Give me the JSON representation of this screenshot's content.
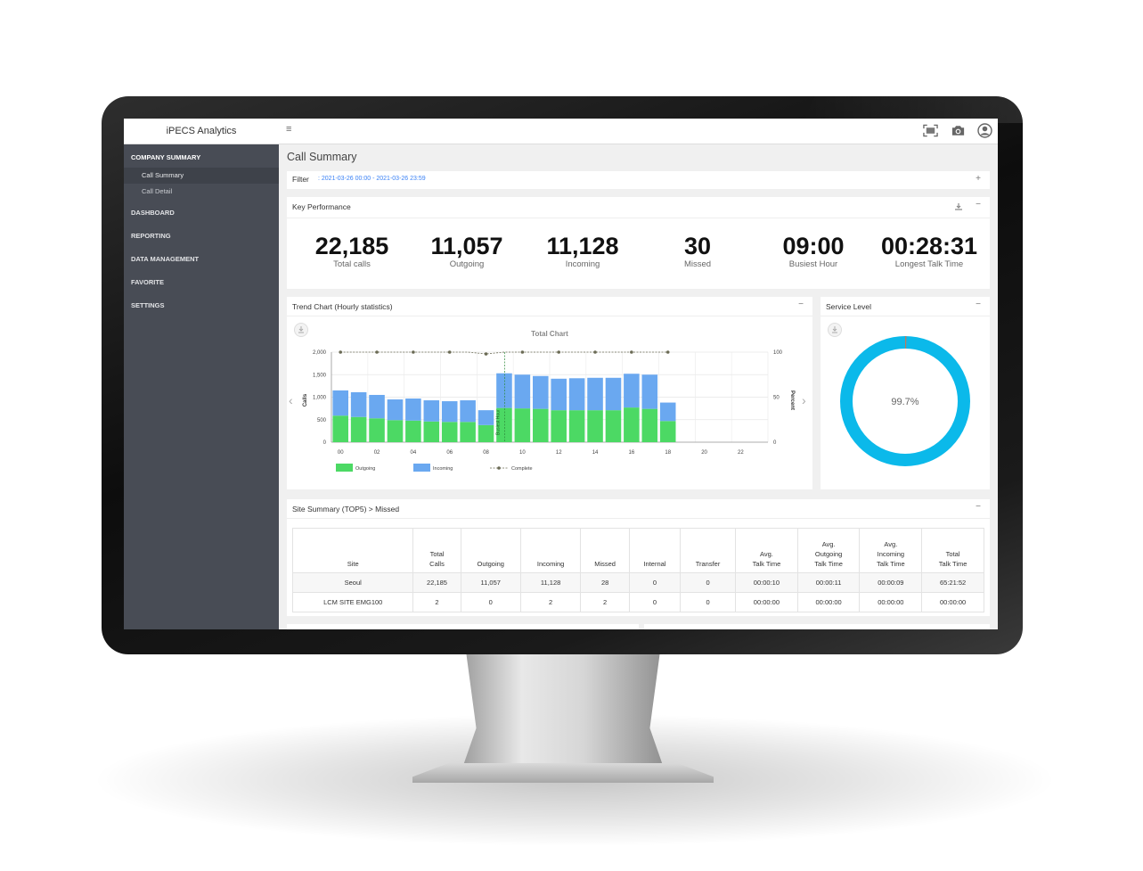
{
  "app": {
    "title": "iPECS Analytics"
  },
  "header_icons": [
    "fullscreen-icon",
    "camera-icon",
    "user-avatar-icon"
  ],
  "sidebar": {
    "sections": [
      {
        "label": "COMPANY SUMMARY",
        "active": true,
        "items": [
          {
            "label": "Call Summary",
            "active": true
          },
          {
            "label": "Call Detail",
            "active": false
          }
        ]
      },
      {
        "label": "DASHBOARD"
      },
      {
        "label": "REPORTING"
      },
      {
        "label": "DATA MANAGEMENT"
      },
      {
        "label": "FAVORITE"
      },
      {
        "label": "SETTINGS"
      }
    ]
  },
  "page": {
    "title": "Call Summary"
  },
  "filter": {
    "label": "Filter",
    "value": ": 2021-03-26 00:00 - 2021-03-26 23:59",
    "expand_symbol": "+"
  },
  "key_performance": {
    "title": "Key Performance",
    "collapse_symbol": "−",
    "kpis": [
      {
        "value": "22,185",
        "label": "Total calls"
      },
      {
        "value": "11,057",
        "label": "Outgoing"
      },
      {
        "value": "11,128",
        "label": "Incoming"
      },
      {
        "value": "30",
        "label": "Missed"
      },
      {
        "value": "09:00",
        "label": "Busiest Hour"
      },
      {
        "value": "00:28:31",
        "label": "Longest Talk Time"
      }
    ]
  },
  "trend_chart": {
    "card_title": "Trend Chart (Hourly statistics)",
    "collapse_symbol": "−",
    "nav_prev": "‹",
    "nav_next": "›",
    "busiest_marker_label": "Busiest Hour"
  },
  "chart_data": {
    "type": "bar",
    "title": "Total Chart",
    "x": [
      0,
      1,
      2,
      3,
      4,
      5,
      6,
      7,
      8,
      9,
      10,
      11,
      12,
      13,
      14,
      15,
      16,
      17,
      18
    ],
    "x_ticks": [
      "00",
      "02",
      "04",
      "06",
      "08",
      "10",
      "12",
      "14",
      "16",
      "18",
      "20",
      "22"
    ],
    "ylabel": "Calls",
    "y2label": "Percent",
    "ylim": [
      0,
      2000
    ],
    "y_ticks": [
      "0",
      "500",
      "1,000",
      "1,500",
      "2,000"
    ],
    "y2lim": [
      0,
      100
    ],
    "y2_ticks": [
      "0",
      "50",
      "100"
    ],
    "stacked": true,
    "series": [
      {
        "name": "Outgoing",
        "color": "#4cd964",
        "values": [
          590,
          560,
          530,
          490,
          480,
          460,
          450,
          450,
          380,
          760,
          750,
          740,
          710,
          710,
          710,
          710,
          770,
          740,
          470
        ]
      },
      {
        "name": "Incoming",
        "color": "#6aa8f0",
        "values": [
          560,
          550,
          520,
          460,
          490,
          470,
          460,
          480,
          330,
          770,
          750,
          730,
          700,
          710,
          720,
          720,
          750,
          760,
          410
        ]
      },
      {
        "name": "Complete",
        "color": "#6b6b55",
        "type": "line",
        "axis": "right",
        "values": [
          100,
          100,
          100,
          100,
          100,
          100,
          100,
          100,
          98,
          100,
          100,
          100,
          100,
          100,
          100,
          100,
          100,
          100,
          100
        ]
      }
    ],
    "busiest_hour_index": 9,
    "grid": true,
    "legend_position": "bottom"
  },
  "service_level": {
    "title": "Service Level",
    "collapse_symbol": "−",
    "value_text": "99.7%",
    "percent": 99.7,
    "ring_color": "#0bb9ea",
    "remainder_color": "#c0795a"
  },
  "site_summary": {
    "title": "Site Summary (TOP5) > Missed",
    "collapse_symbol": "−",
    "columns": [
      [
        "Site"
      ],
      [
        "Total",
        "Calls"
      ],
      [
        "Outgoing"
      ],
      [
        "Incoming"
      ],
      [
        "Missed"
      ],
      [
        "Internal"
      ],
      [
        "Transfer"
      ],
      [
        "Avg.",
        "Talk Time"
      ],
      [
        "Avg.",
        "Outgoing",
        "Talk Time"
      ],
      [
        "Avg.",
        "Incoming",
        "Talk Time"
      ],
      [
        "Total",
        "Talk Time"
      ]
    ],
    "rows": [
      [
        "Seoul",
        "22,185",
        "11,057",
        "11,128",
        "28",
        "0",
        "0",
        "00:00:10",
        "00:00:11",
        "00:00:09",
        "65:21:52"
      ],
      [
        "LCM SITE EMG100",
        "2",
        "0",
        "2",
        "2",
        "0",
        "0",
        "00:00:00",
        "00:00:00",
        "00:00:00",
        "00:00:00"
      ]
    ]
  }
}
